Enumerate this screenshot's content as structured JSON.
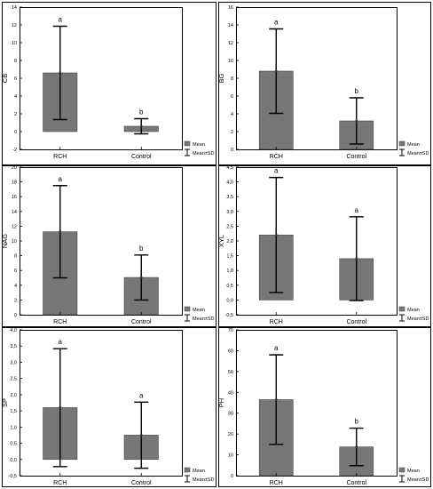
{
  "legend": {
    "mean_label": "Mean",
    "sd_label": "Mean±SD"
  },
  "colors": {
    "bar": "#777777",
    "axis": "#000000",
    "frame": "#000000"
  },
  "chart_data": [
    {
      "type": "bar",
      "ylabel": "CB",
      "categories": [
        "RCH",
        "Control"
      ],
      "values": [
        6.6,
        0.6
      ],
      "sd": [
        5.25,
        0.85
      ],
      "letters": [
        "a",
        "b"
      ],
      "ylim": [
        -2,
        14
      ],
      "yticks": [
        -2,
        0,
        2,
        4,
        6,
        8,
        10,
        12,
        14
      ],
      "ytick_labels": [
        "-2",
        "0",
        "2",
        "4",
        "6",
        "8",
        "10",
        "12",
        "14"
      ],
      "grid": false,
      "legend_position": "bottom-right"
    },
    {
      "type": "bar",
      "ylabel": "BG",
      "categories": [
        "RCH",
        "Control"
      ],
      "values": [
        8.8,
        3.2
      ],
      "sd": [
        4.75,
        2.6
      ],
      "letters": [
        "a",
        "b"
      ],
      "ylim": [
        0,
        16
      ],
      "yticks": [
        0,
        2,
        4,
        6,
        8,
        10,
        12,
        14,
        16
      ],
      "ytick_labels": [
        "0",
        "2",
        "4",
        "6",
        "8",
        "10",
        "12",
        "14",
        "16"
      ],
      "grid": false,
      "legend_position": "bottom-right"
    },
    {
      "type": "bar",
      "ylabel": "NAG",
      "categories": [
        "RCH",
        "Control"
      ],
      "values": [
        11.25,
        5.05
      ],
      "sd": [
        6.25,
        3.05
      ],
      "letters": [
        "a",
        "b"
      ],
      "ylim": [
        0,
        20
      ],
      "yticks": [
        0,
        2,
        4,
        6,
        8,
        10,
        12,
        14,
        16,
        18,
        20
      ],
      "ytick_labels": [
        "0",
        "2",
        "4",
        "6",
        "8",
        "10",
        "12",
        "14",
        "16",
        "18",
        "20"
      ],
      "grid": false,
      "legend_position": "bottom-right"
    },
    {
      "type": "bar",
      "ylabel": "XYL",
      "categories": [
        "RCH",
        "Control"
      ],
      "values": [
        2.2,
        1.4
      ],
      "sd": [
        1.95,
        1.42
      ],
      "letters": [
        "a",
        "a"
      ],
      "ylim": [
        -0.5,
        4.5
      ],
      "yticks": [
        -0.5,
        0,
        0.5,
        1,
        1.5,
        2,
        2.5,
        3,
        3.5,
        4,
        4.5
      ],
      "ytick_labels": [
        "-0,5",
        "0,0",
        "0,5",
        "1,0",
        "1,5",
        "2,0",
        "2,5",
        "3,0",
        "3,5",
        "4,0",
        "4,5"
      ],
      "grid": false,
      "legend_position": "bottom-right"
    },
    {
      "type": "bar",
      "ylabel": "SP",
      "categories": [
        "RCH",
        "Control"
      ],
      "values": [
        1.6,
        0.75
      ],
      "sd": [
        1.82,
        1.02
      ],
      "letters": [
        "a",
        "a"
      ],
      "ylim": [
        -0.5,
        4.0
      ],
      "yticks": [
        -0.5,
        0,
        0.5,
        1,
        1.5,
        2,
        2.5,
        3,
        3.5,
        4
      ],
      "ytick_labels": [
        "-0,5",
        "0,0",
        "0,5",
        "1,0",
        "1,5",
        "2,0",
        "2,5",
        "3,0",
        "3,5",
        "4,0"
      ],
      "grid": false,
      "legend_position": "bottom-right"
    },
    {
      "type": "bar",
      "ylabel": "PH",
      "categories": [
        "RCH",
        "Control"
      ],
      "values": [
        36.5,
        13.8
      ],
      "sd": [
        21.5,
        9.0
      ],
      "letters": [
        "a",
        "b"
      ],
      "ylim": [
        0,
        70
      ],
      "yticks": [
        0,
        10,
        20,
        30,
        40,
        50,
        60,
        70
      ],
      "ytick_labels": [
        "0",
        "10",
        "20",
        "30",
        "40",
        "50",
        "60",
        "70"
      ],
      "grid": false,
      "legend_position": "bottom-right"
    }
  ]
}
